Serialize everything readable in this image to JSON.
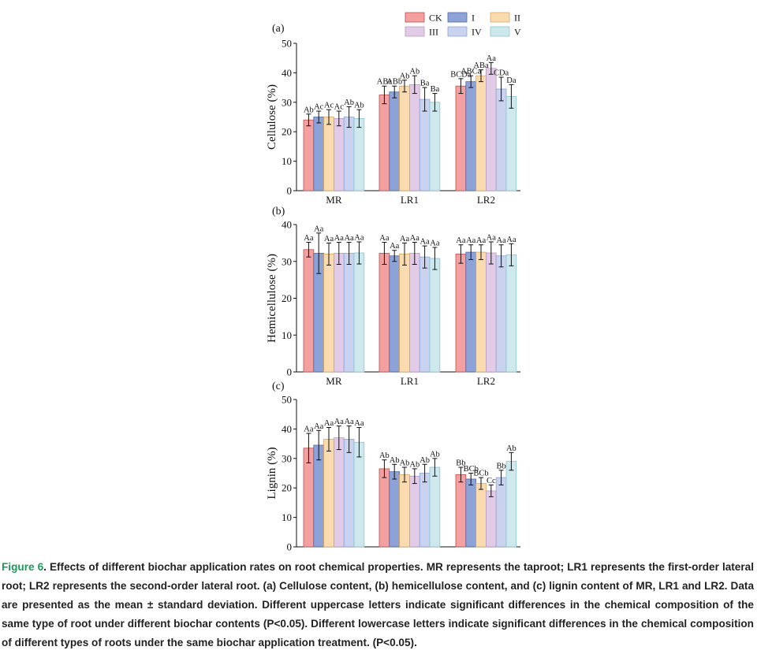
{
  "legend": {
    "entries": [
      "CK",
      "I",
      "II",
      "III",
      "IV",
      "V"
    ],
    "colors": [
      "#f4a0a0",
      "#8da2d6",
      "#fadbb0",
      "#e2cbe6",
      "#c9d3f0",
      "#cde9ee"
    ],
    "edge_colors": [
      "#c0504d",
      "#4f6aa9",
      "#d9a95c",
      "#b79ac0",
      "#8fa3d4",
      "#8cc3cc"
    ]
  },
  "chart_data": [
    {
      "type": "bar",
      "panel": "(a)",
      "ylabel": "Cellulose (%)",
      "ylim": [
        0,
        50
      ],
      "yticks": [
        0,
        10,
        20,
        30,
        40,
        50
      ],
      "categories": [
        "MR",
        "LR1",
        "LR2"
      ],
      "series": [
        {
          "name": "CK",
          "values": [
            24,
            32.5,
            35.5
          ],
          "errors": [
            2,
            3,
            2.5
          ],
          "labels": [
            "Ab",
            "ABa",
            "BCDa"
          ]
        },
        {
          "name": "I",
          "values": [
            25,
            33.5,
            37
          ],
          "errors": [
            2,
            2,
            2
          ],
          "labels": [
            "Ac",
            "ABb",
            "ABCa"
          ]
        },
        {
          "name": "II",
          "values": [
            25,
            35.5,
            39
          ],
          "errors": [
            2.5,
            2,
            2
          ],
          "labels": [
            "Ac",
            "Ab",
            "ABa"
          ]
        },
        {
          "name": "III",
          "values": [
            24.5,
            36,
            41.5
          ],
          "errors": [
            2.5,
            3,
            2
          ],
          "labels": [
            "Ac",
            "Ab",
            "Aa"
          ]
        },
        {
          "name": "IV",
          "values": [
            25,
            31,
            34.5
          ],
          "errors": [
            3.5,
            4,
            4
          ],
          "labels": [
            "Ab",
            "Ba",
            "CDa"
          ]
        },
        {
          "name": "V",
          "values": [
            24.5,
            30,
            32
          ],
          "errors": [
            3,
            3,
            4
          ],
          "labels": [
            "Ab",
            "Ba",
            "Da"
          ]
        }
      ]
    },
    {
      "type": "bar",
      "panel": "(b)",
      "ylabel": "Hemicellulose (%)",
      "ylim": [
        0,
        40
      ],
      "yticks": [
        0,
        10,
        20,
        30,
        40
      ],
      "categories": [
        "MR",
        "LR1",
        "LR2"
      ],
      "series": [
        {
          "name": "CK",
          "values": [
            33.2,
            32.2,
            32
          ],
          "errors": [
            2,
            3,
            2.5
          ],
          "labels": [
            "Aa",
            "Aa",
            "Aa"
          ]
        },
        {
          "name": "I",
          "values": [
            32.2,
            31.5,
            32.5
          ],
          "errors": [
            5.5,
            1.5,
            2
          ],
          "labels": [
            "Aa",
            "Aa",
            "Aa"
          ]
        },
        {
          "name": "II",
          "values": [
            32,
            32,
            32.5
          ],
          "errors": [
            3,
            3,
            2
          ],
          "labels": [
            "Aa",
            "Aa",
            "Aa"
          ]
        },
        {
          "name": "III",
          "values": [
            32.2,
            32.2,
            32.3
          ],
          "errors": [
            3,
            3,
            3
          ],
          "labels": [
            "Aa",
            "Aa",
            "Aa"
          ]
        },
        {
          "name": "IV",
          "values": [
            32.2,
            31.2,
            31.5
          ],
          "errors": [
            3,
            3,
            3
          ],
          "labels": [
            "Aa",
            "Aa",
            "Aa"
          ]
        },
        {
          "name": "V",
          "values": [
            32.3,
            30.8,
            31.8
          ],
          "errors": [
            3,
            3,
            3
          ],
          "labels": [
            "Aa",
            "Aa",
            "Aa"
          ]
        }
      ]
    },
    {
      "type": "bar",
      "panel": "(c)",
      "ylabel": "Lignin (%)",
      "ylim": [
        0,
        50
      ],
      "yticks": [
        0,
        10,
        20,
        30,
        40,
        50
      ],
      "categories": [
        "MR",
        "LR1",
        "LR2"
      ],
      "series": [
        {
          "name": "CK",
          "values": [
            33.5,
            26.5,
            24.5
          ],
          "errors": [
            5,
            3,
            2.5
          ],
          "labels": [
            "Aa",
            "Ab",
            "Bb"
          ]
        },
        {
          "name": "I",
          "values": [
            34.5,
            25.5,
            23
          ],
          "errors": [
            5,
            2.5,
            2
          ],
          "labels": [
            "Aa",
            "Ab",
            "BCb"
          ]
        },
        {
          "name": "II",
          "values": [
            36.5,
            24.5,
            21.5
          ],
          "errors": [
            4,
            2.5,
            2
          ],
          "labels": [
            "Aa",
            "Ab",
            "BCb"
          ]
        },
        {
          "name": "III",
          "values": [
            37,
            24,
            19
          ],
          "errors": [
            4,
            2.5,
            2
          ],
          "labels": [
            "Aa",
            "Ab",
            "Cc"
          ]
        },
        {
          "name": "IV",
          "values": [
            36.5,
            25,
            23.5
          ],
          "errors": [
            4.5,
            3,
            2.5
          ],
          "labels": [
            "Aa",
            "Ab",
            "Bb"
          ]
        },
        {
          "name": "V",
          "values": [
            35.5,
            27,
            29
          ],
          "errors": [
            5,
            3,
            3
          ],
          "labels": [
            "Aa",
            "Ab",
            "Ab"
          ]
        }
      ]
    }
  ],
  "caption": {
    "label": "Figure 6",
    "text": ". Effects of different biochar application rates on root chemical properties. MR represents the taproot; LR1 represents the first-order lateral root; LR2 represents the second-order lateral root. (a) Cellulose content, (b) hemicellulose content, and (c) lignin content of MR, LR1 and LR2. Data are presented as the mean ± standard deviation. Different uppercase letters indicate significant differences in the chemical composition of the same type of root under different biochar contents (P<0.05). Different lowercase letters indicate significant differences in the chemical composition of different types of roots under the same biochar application treatment. (P<0.05)."
  }
}
